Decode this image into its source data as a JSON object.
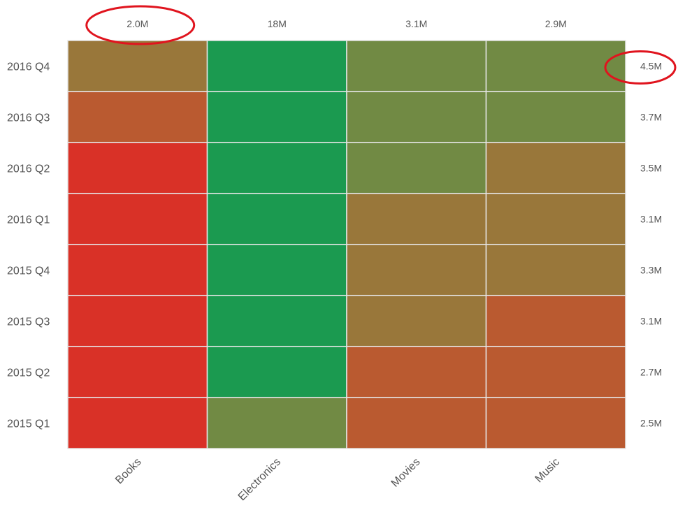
{
  "chart_data": {
    "type": "heatmap",
    "title": "",
    "xlabel": "",
    "ylabel": "",
    "x_categories": [
      "Books",
      "Electronics",
      "Movies",
      "Music"
    ],
    "y_categories": [
      "2016 Q4",
      "2016 Q3",
      "2016 Q2",
      "2016 Q1",
      "2015 Q4",
      "2015 Q3",
      "2015 Q2",
      "2015 Q1"
    ],
    "column_totals": [
      "2.0M",
      "18M",
      "3.1M",
      "2.9M"
    ],
    "row_totals": [
      "4.5M",
      "3.7M",
      "3.5M",
      "3.1M",
      "3.3M",
      "3.1M",
      "2.7M",
      "2.5M"
    ],
    "color_levels": [
      [
        2,
        5,
        4,
        4
      ],
      [
        1,
        5,
        4,
        4
      ],
      [
        0,
        5,
        4,
        2
      ],
      [
        0,
        5,
        2,
        2
      ],
      [
        0,
        5,
        2,
        2
      ],
      [
        0,
        5,
        2,
        1
      ],
      [
        0,
        5,
        1,
        1
      ],
      [
        0,
        4,
        1,
        1
      ]
    ],
    "color_scale": [
      "#d93127",
      "#ba5a30",
      "#99773a",
      "#99773a",
      "#718a44",
      "#1b9a50"
    ],
    "grid": true,
    "highlights": [
      {
        "target": "column_total",
        "index": 0,
        "color": "#e0141e"
      },
      {
        "target": "row_total",
        "index": 0,
        "color": "#e0141e"
      }
    ]
  }
}
